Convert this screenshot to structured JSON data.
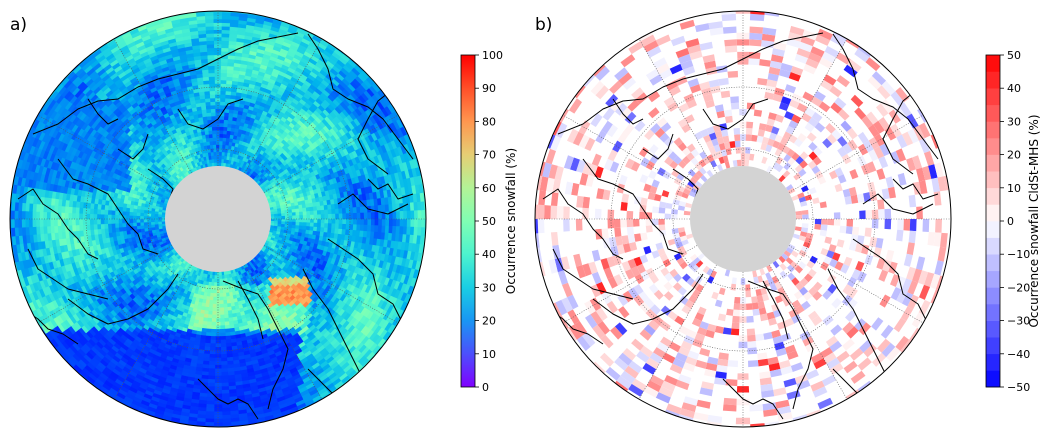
{
  "chart_data": [
    {
      "type": "heatmap",
      "panel_label": "a)",
      "colorbar_label": "Occurrence snowfall (%)",
      "colorbar_ticks": [
        0,
        10,
        20,
        30,
        40,
        50,
        60,
        70,
        80,
        90,
        100
      ],
      "value_range": [
        0,
        100
      ],
      "colormap": "rainbow",
      "projection": "north polar stereographic",
      "pole_hole_color": "#d3d3d3",
      "coastline_color": "#000000"
    },
    {
      "type": "heatmap",
      "panel_label": "b)",
      "colorbar_label": "Occurrence snowfall CldSt-MHS (%)",
      "colorbar_ticks": [
        -50,
        -40,
        -30,
        -20,
        -10,
        0,
        10,
        20,
        30,
        40,
        50
      ],
      "value_range": [
        -50,
        50
      ],
      "colormap": "bwr",
      "colorbar_levels": 20,
      "projection": "north polar stereographic",
      "pole_hole_color": "#d3d3d3",
      "coastline_color": "#000000"
    }
  ]
}
